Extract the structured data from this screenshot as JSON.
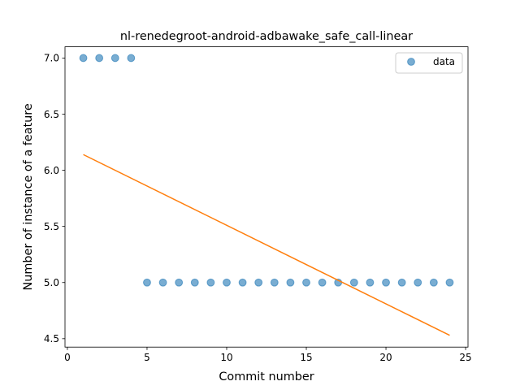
{
  "chart_data": {
    "type": "scatter",
    "title": "nl-renedegroot-android-adbawake_safe_call-linear",
    "xlabel": "Commit number",
    "ylabel": "Number of instance of a feature",
    "xlim": [
      -0.15,
      25.15
    ],
    "ylim": [
      4.425,
      7.1
    ],
    "xticks": [
      0,
      5,
      10,
      15,
      20,
      25
    ],
    "yticks": [
      4.5,
      5.0,
      5.5,
      6.0,
      6.5,
      7.0
    ],
    "xtick_labels": [
      "0",
      "5",
      "10",
      "15",
      "20",
      "25"
    ],
    "ytick_labels": [
      "4.5",
      "5.0",
      "5.5",
      "6.0",
      "6.5",
      "7.0"
    ],
    "grid": false,
    "legend_position": "top-right",
    "series": [
      {
        "name": "data",
        "kind": "scatter",
        "color": "#1f77b4",
        "x": [
          1,
          2,
          3,
          4,
          5,
          6,
          7,
          8,
          9,
          10,
          11,
          12,
          13,
          14,
          15,
          16,
          17,
          18,
          19,
          20,
          21,
          22,
          23,
          24
        ],
        "y": [
          7,
          7,
          7,
          7,
          5,
          5,
          5,
          5,
          5,
          5,
          5,
          5,
          5,
          5,
          5,
          5,
          5,
          5,
          5,
          5,
          5,
          5,
          5,
          5
        ]
      },
      {
        "kind": "line",
        "color": "#ff7f0e",
        "x": [
          1,
          24
        ],
        "y": [
          6.14,
          4.53
        ]
      }
    ]
  }
}
